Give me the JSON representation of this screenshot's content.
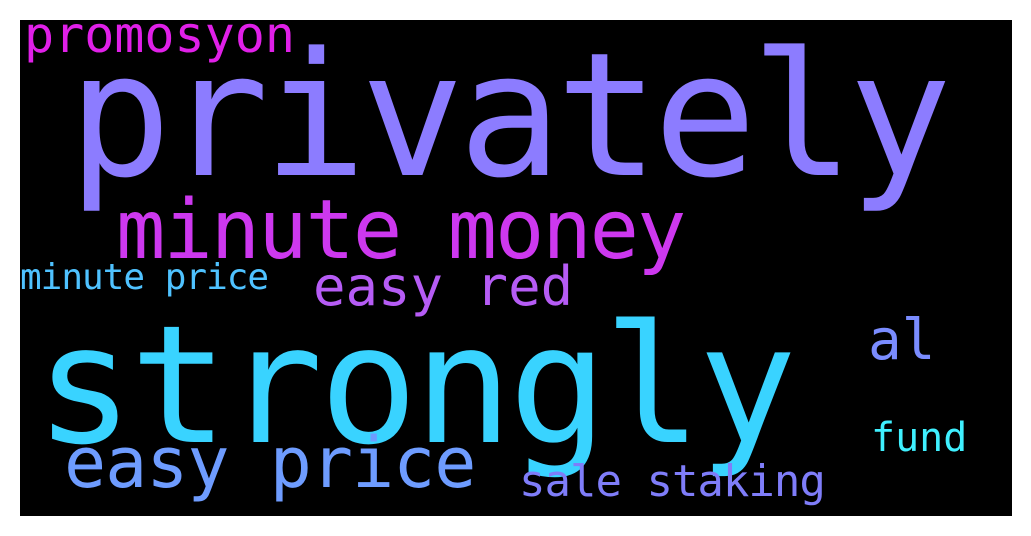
{
  "cloud": {
    "background": "#000000",
    "words": {
      "privately": {
        "text": "privately",
        "color": "#8c7cff"
      },
      "strongly": {
        "text": "strongly",
        "color": "#39d3ff"
      },
      "minute_money": {
        "text": "minute money",
        "color": "#cd38ef"
      },
      "easy_price": {
        "text": "easy price",
        "color": "#6e9cff"
      },
      "easy_red": {
        "text": "easy red",
        "color": "#b65cf5"
      },
      "promosyon": {
        "text": "promosyon",
        "color": "#e020e8"
      },
      "minute_price": {
        "text": "minute price",
        "color": "#4fc2ff"
      },
      "al": {
        "text": "al",
        "color": "#7a8cff"
      },
      "fund": {
        "text": "fund",
        "color": "#3ff0ff"
      },
      "sale_staking": {
        "text": "sale staking",
        "color": "#7f7df9"
      }
    }
  }
}
